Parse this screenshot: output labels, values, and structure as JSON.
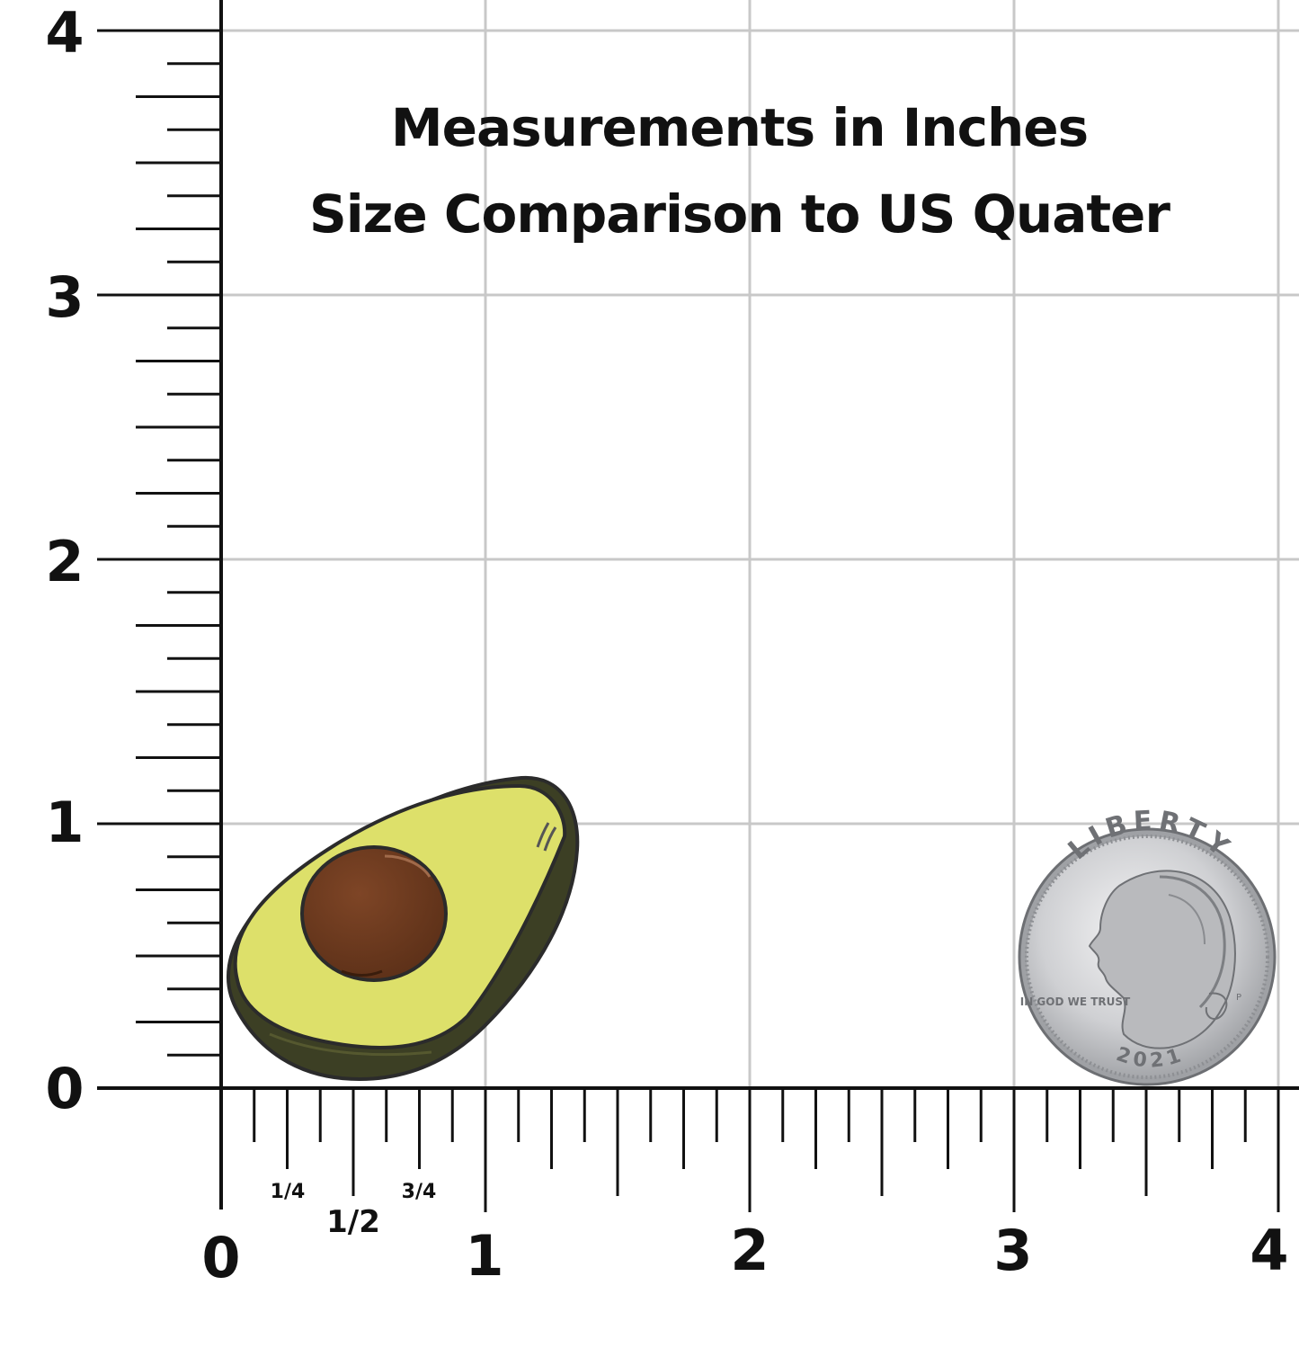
{
  "title": {
    "line1": "Measurements in Inches",
    "line2": "Size Comparison to US Quater"
  },
  "axes": {
    "unit": "inches",
    "x_labels": [
      "0",
      "1",
      "2",
      "3",
      "4"
    ],
    "y_labels": [
      "0",
      "1",
      "2",
      "3",
      "4"
    ],
    "fraction_labels": [
      "1/4",
      "1/2",
      "3/4"
    ],
    "range": [
      0,
      4
    ],
    "ticks_per_inch": 8,
    "grid": true
  },
  "objects": {
    "avocado": {
      "icon": "avocado-pin-icon",
      "width_in": 1.35,
      "height_in": 1.15,
      "colors": {
        "flesh": "#dde06a",
        "skin": "#3c3f24",
        "pit": "#6b3a1f",
        "outline": "#2b2b2b"
      }
    },
    "quarter": {
      "icon": "us-quarter-coin-icon",
      "diameter_in": 0.955,
      "inscriptions": {
        "top": "LIBERTY",
        "left": "IN GOD WE TRUST",
        "mint": "P",
        "year": "2021"
      },
      "colors": {
        "face": "#d9dadc",
        "edge": "#8d8f93"
      }
    }
  },
  "colors": {
    "grid": "#c8c8c8",
    "ruler": "#111111",
    "text": "#111111"
  }
}
